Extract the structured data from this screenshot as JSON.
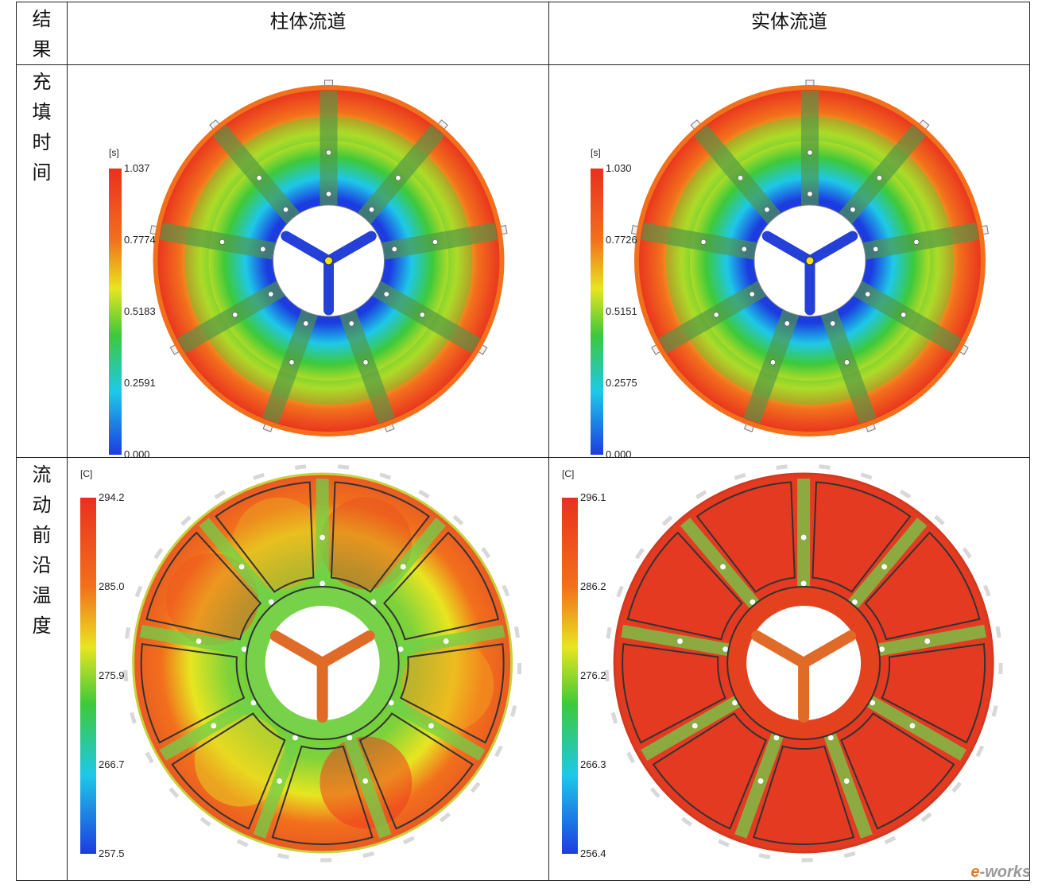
{
  "table": {
    "corner_chars": [
      "结",
      "果"
    ],
    "col_headers": [
      "柱体流道",
      "实体流道"
    ],
    "rows": [
      {
        "label_chars": [
          "充",
          "填",
          "时",
          "间"
        ]
      },
      {
        "label_chars": [
          "流",
          "动",
          "前",
          "沿",
          "温",
          "度"
        ]
      }
    ]
  },
  "panels": {
    "fill_cyl": {
      "unit": "[s]",
      "ticks": [
        "1.037",
        "0.7774",
        "0.5183",
        "0.2591",
        "0.000"
      ],
      "colorscale": "rainbow",
      "hot_fraction": 0.3
    },
    "fill_solid": {
      "unit": "[s]",
      "ticks": [
        "1.030",
        "0.7726",
        "0.5151",
        "0.2575",
        "0.000"
      ],
      "colorscale": "rainbow",
      "hot_fraction": 0.3
    },
    "temp_cyl": {
      "unit": "[C]",
      "ticks": [
        "294.2",
        "285.0",
        "275.9",
        "266.7",
        "257.5"
      ],
      "colorscale": "rainbow"
    },
    "temp_solid": {
      "unit": "[C]",
      "ticks": [
        "296.1",
        "286.2",
        "276.2",
        "266.3",
        "256.4"
      ],
      "colorscale": "rainbow"
    }
  },
  "watermark": {
    "brand": "e-works"
  },
  "colors": {
    "red": "#e8311f",
    "orange": "#f2701c",
    "yellow": "#e8e520",
    "green": "#3ec93a",
    "cyan": "#1ec8e8",
    "blue": "#1c3ce0",
    "runner_blue": "#2540d8",
    "runner_orange": "#e06a28"
  }
}
